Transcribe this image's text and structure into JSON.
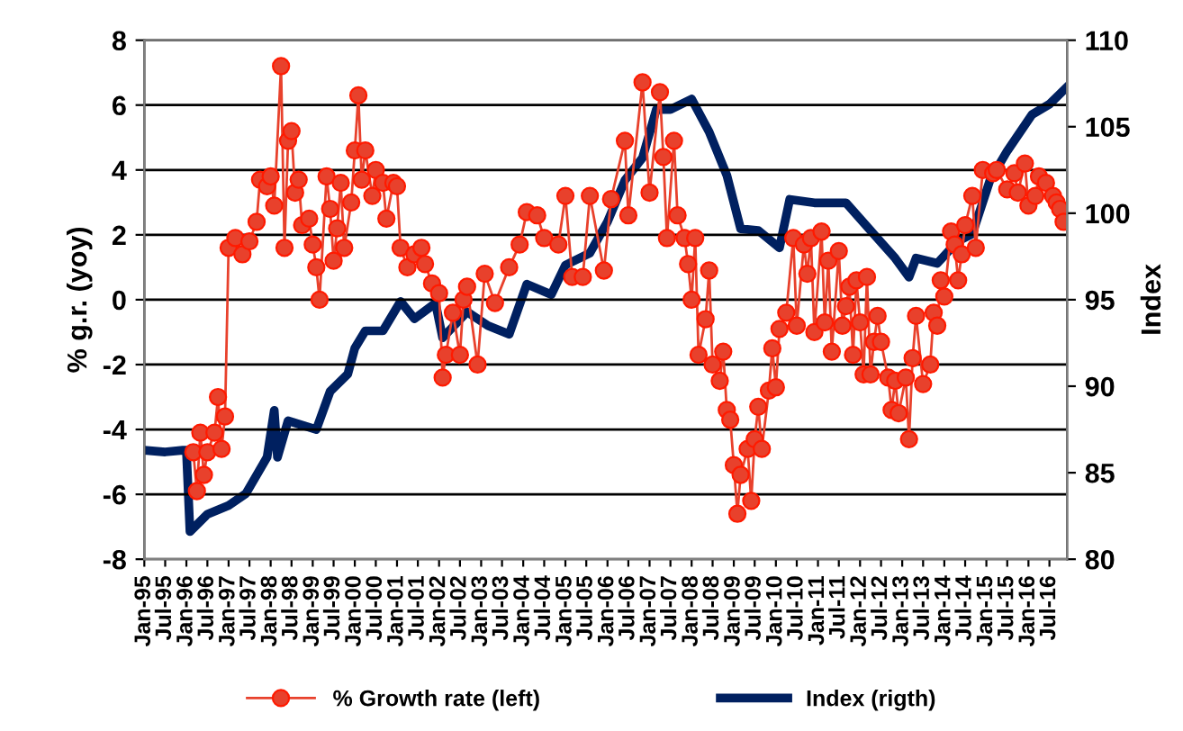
{
  "chart_data": {
    "type": "line",
    "ylabel": "% g.r. (yoy)",
    "y2label": "Index",
    "legend": "bottom",
    "grid": "y",
    "xlim": [
      "1995-01",
      "2016-12"
    ],
    "xticks": [
      {
        "value": "1995-01",
        "label": "Jan-95"
      },
      {
        "value": "1995-07",
        "label": "Jul-95"
      },
      {
        "value": "1996-01",
        "label": "Jan-96"
      },
      {
        "value": "1996-07",
        "label": "Jul-96"
      },
      {
        "value": "1997-01",
        "label": "Jan-97"
      },
      {
        "value": "1997-07",
        "label": "Jul-97"
      },
      {
        "value": "1998-01",
        "label": "Jan-98"
      },
      {
        "value": "1998-07",
        "label": "Jul-98"
      },
      {
        "value": "1999-01",
        "label": "Jan-99"
      },
      {
        "value": "1999-07",
        "label": "Jul-99"
      },
      {
        "value": "2000-01",
        "label": "Jan-00"
      },
      {
        "value": "2000-07",
        "label": "Jul-00"
      },
      {
        "value": "2001-01",
        "label": "Jan-01"
      },
      {
        "value": "2001-07",
        "label": "Jul-01"
      },
      {
        "value": "2002-01",
        "label": "Jan-02"
      },
      {
        "value": "2002-07",
        "label": "Jul-02"
      },
      {
        "value": "2003-01",
        "label": "Jan-03"
      },
      {
        "value": "2003-07",
        "label": "Jul-03"
      },
      {
        "value": "2004-01",
        "label": "Jan-04"
      },
      {
        "value": "2004-07",
        "label": "Jul-04"
      },
      {
        "value": "2005-01",
        "label": "Jan-05"
      },
      {
        "value": "2005-07",
        "label": "Jul-05"
      },
      {
        "value": "2006-01",
        "label": "Jan-06"
      },
      {
        "value": "2006-07",
        "label": "Jul-06"
      },
      {
        "value": "2007-01",
        "label": "Jan-07"
      },
      {
        "value": "2007-07",
        "label": "Jul-07"
      },
      {
        "value": "2008-01",
        "label": "Jan-08"
      },
      {
        "value": "2008-07",
        "label": "Jul-08"
      },
      {
        "value": "2009-01",
        "label": "Jan-09"
      },
      {
        "value": "2009-07",
        "label": "Jul-09"
      },
      {
        "value": "2010-01",
        "label": "Jan-10"
      },
      {
        "value": "2010-07",
        "label": "Jul-10"
      },
      {
        "value": "2011-01",
        "label": "Jan-11"
      },
      {
        "value": "2011-07",
        "label": "Jul-11"
      },
      {
        "value": "2012-01",
        "label": "Jan-12"
      },
      {
        "value": "2012-07",
        "label": "Jul-12"
      },
      {
        "value": "2013-01",
        "label": "Jan-13"
      },
      {
        "value": "2013-07",
        "label": "Jul-13"
      },
      {
        "value": "2014-01",
        "label": "Jan-14"
      },
      {
        "value": "2014-07",
        "label": "Jul-14"
      },
      {
        "value": "2015-01",
        "label": "Jan-15"
      },
      {
        "value": "2015-07",
        "label": "Jul-15"
      },
      {
        "value": "2016-01",
        "label": "Jan-16"
      },
      {
        "value": "2016-07",
        "label": "Jul-16"
      }
    ],
    "ylim": [
      -8,
      8
    ],
    "yticks": [
      -8,
      -6,
      -4,
      -2,
      0,
      2,
      4,
      6,
      8
    ],
    "y2lim": [
      80,
      110
    ],
    "y2ticks": [
      80,
      85,
      90,
      95,
      100,
      105,
      110
    ],
    "series": [
      {
        "name": "% Growth rate (left)",
        "color": "#e8412c",
        "marker": "circle",
        "x": [
          "1996-03",
          "1996-04",
          "1996-05",
          "1996-06",
          "1996-07",
          "1996-09",
          "1996-10",
          "1996-11",
          "1996-12",
          "1997-01",
          "1997-03",
          "1997-05",
          "1997-07",
          "1997-09",
          "1997-10",
          "1997-12",
          "1998-01",
          "1998-02",
          "1998-04",
          "1998-05",
          "1998-06",
          "1998-07",
          "1998-08",
          "1998-09",
          "1998-10",
          "1998-12",
          "1999-01",
          "1999-02",
          "1999-03",
          "1999-05",
          "1999-06",
          "1999-07",
          "1999-08",
          "1999-09",
          "1999-10",
          "1999-12",
          "2000-01",
          "2000-02",
          "2000-03",
          "2000-04",
          "2000-06",
          "2000-07",
          "2000-09",
          "2000-10",
          "2000-12",
          "2001-01",
          "2001-02",
          "2001-04",
          "2001-06",
          "2001-08",
          "2001-09",
          "2001-11",
          "2002-01",
          "2002-02",
          "2002-03",
          "2002-05",
          "2002-07",
          "2002-08",
          "2002-09",
          "2002-12",
          "2003-02",
          "2003-05",
          "2003-09",
          "2003-12",
          "2004-02",
          "2004-05",
          "2004-07",
          "2004-11",
          "2005-01",
          "2005-03",
          "2005-06",
          "2005-08",
          "2005-12",
          "2006-02",
          "2006-06",
          "2006-07",
          "2006-11",
          "2007-01",
          "2007-04",
          "2007-05",
          "2007-06",
          "2007-08",
          "2007-09",
          "2007-11",
          "2007-12",
          "2008-01",
          "2008-02",
          "2008-03",
          "2008-05",
          "2008-06",
          "2008-07",
          "2008-09",
          "2008-10",
          "2008-11",
          "2008-12",
          "2009-01",
          "2009-02",
          "2009-03",
          "2009-05",
          "2009-06",
          "2009-07",
          "2009-08",
          "2009-09",
          "2009-11",
          "2009-12",
          "2010-01",
          "2010-02",
          "2010-04",
          "2010-06",
          "2010-07",
          "2010-09",
          "2010-10",
          "2010-11",
          "2010-12",
          "2011-02",
          "2011-03",
          "2011-04",
          "2011-05",
          "2011-07",
          "2011-08",
          "2011-09",
          "2011-10",
          "2011-11",
          "2011-12",
          "2012-01",
          "2012-02",
          "2012-03",
          "2012-04",
          "2012-05",
          "2012-06",
          "2012-07",
          "2012-09",
          "2012-10",
          "2012-11",
          "2012-12",
          "2013-02",
          "2013-03",
          "2013-04",
          "2013-05",
          "2013-07",
          "2013-09",
          "2013-10",
          "2013-11",
          "2013-12",
          "2014-01",
          "2014-03",
          "2014-04",
          "2014-05",
          "2014-06",
          "2014-07",
          "2014-09",
          "2014-10",
          "2014-12",
          "2015-03",
          "2015-04",
          "2015-07",
          "2015-09",
          "2015-10",
          "2015-12",
          "2016-01",
          "2016-03",
          "2016-04",
          "2016-06",
          "2016-08",
          "2016-09",
          "2016-10",
          "2016-11"
        ],
        "values": [
          -4.7,
          -5.9,
          -4.1,
          -5.4,
          -4.7,
          -4.1,
          -3.0,
          -4.6,
          -3.6,
          1.6,
          1.9,
          1.4,
          1.8,
          2.4,
          3.7,
          3.5,
          3.8,
          2.9,
          7.2,
          1.6,
          4.9,
          5.2,
          3.3,
          3.7,
          2.3,
          2.5,
          1.7,
          1.0,
          0.0,
          3.8,
          2.8,
          1.2,
          2.2,
          3.6,
          1.6,
          3.0,
          4.6,
          6.3,
          3.7,
          4.6,
          3.2,
          4.0,
          3.6,
          2.5,
          3.6,
          3.5,
          1.6,
          1.0,
          1.4,
          1.6,
          1.1,
          0.5,
          0.2,
          -2.4,
          -1.7,
          -0.4,
          -1.7,
          0.0,
          0.4,
          -2.0,
          0.8,
          -0.1,
          1.0,
          1.7,
          2.7,
          2.6,
          1.9,
          1.7,
          3.2,
          0.7,
          0.7,
          3.2,
          0.9,
          3.1,
          4.9,
          2.6,
          6.7,
          3.3,
          6.4,
          4.4,
          1.9,
          4.9,
          2.6,
          1.9,
          1.1,
          0.0,
          1.9,
          -1.7,
          -0.6,
          0.9,
          -2.0,
          -2.5,
          -1.6,
          -3.4,
          -3.7,
          -5.1,
          -6.6,
          -5.4,
          -4.6,
          -6.2,
          -4.3,
          -3.3,
          -4.6,
          -2.8,
          -1.5,
          -2.7,
          -0.9,
          -0.4,
          1.9,
          -0.8,
          1.7,
          0.8,
          1.9,
          -1.0,
          2.1,
          -0.7,
          1.2,
          -1.6,
          1.5,
          -0.8,
          -0.2,
          0.4,
          -1.7,
          0.6,
          -0.7,
          -2.3,
          0.7,
          -2.3,
          -1.3,
          -0.5,
          -1.3,
          -2.4,
          -3.4,
          -2.5,
          -3.5,
          -2.4,
          -4.3,
          -1.8,
          -0.5,
          -2.6,
          -2.0,
          -0.4,
          -0.8,
          0.6,
          0.1,
          2.1,
          1.7,
          0.6,
          1.4,
          2.3,
          3.2,
          1.6,
          4.0,
          3.9,
          4.0,
          3.4,
          3.9,
          3.3,
          4.2,
          2.9,
          3.2,
          3.8,
          3.6,
          3.2,
          3.0,
          2.8,
          2.4
        ]
      },
      {
        "name": "Index (rigth)",
        "color": "#002060",
        "axis": "y2",
        "x": [
          "1995-01",
          "1995-07",
          "1995-12",
          "1996-01",
          "1996-02",
          "1996-07",
          "1997-01",
          "1997-06",
          "1997-12",
          "1998-02",
          "1998-03",
          "1998-06",
          "1999-02",
          "1999-06",
          "1999-11",
          "2000-01",
          "2000-04",
          "2000-09",
          "2001-02",
          "2001-06",
          "2001-12",
          "2002-02",
          "2002-09",
          "2003-03",
          "2003-09",
          "2004-02",
          "2004-09",
          "2005-01",
          "2005-08",
          "2006-01",
          "2006-06",
          "2006-11",
          "2007-03",
          "2007-07",
          "2008-01",
          "2008-06",
          "2008-11",
          "2009-03",
          "2009-08",
          "2010-02",
          "2010-05",
          "2010-12",
          "2011-09",
          "2012-04",
          "2012-11",
          "2013-03",
          "2013-05",
          "2013-11",
          "2014-05",
          "2014-09",
          "2015-02",
          "2015-07",
          "2016-02",
          "2016-07",
          "2016-12"
        ],
        "values": [
          86.3,
          86.2,
          86.3,
          86.3,
          81.6,
          82.6,
          83.1,
          83.8,
          85.9,
          88.6,
          85.9,
          88.0,
          87.5,
          89.7,
          90.7,
          92.2,
          93.2,
          93.2,
          94.9,
          93.9,
          94.8,
          92.8,
          94.3,
          93.5,
          93.0,
          95.9,
          95.3,
          97.0,
          97.7,
          99.5,
          101.9,
          103.2,
          106.0,
          106.0,
          106.6,
          104.7,
          102.2,
          99.1,
          99.0,
          98.0,
          100.8,
          100.6,
          100.6,
          99.0,
          97.4,
          96.3,
          97.4,
          97.1,
          98.4,
          98.8,
          101.9,
          103.6,
          105.7,
          106.3,
          107.3
        ]
      }
    ]
  }
}
